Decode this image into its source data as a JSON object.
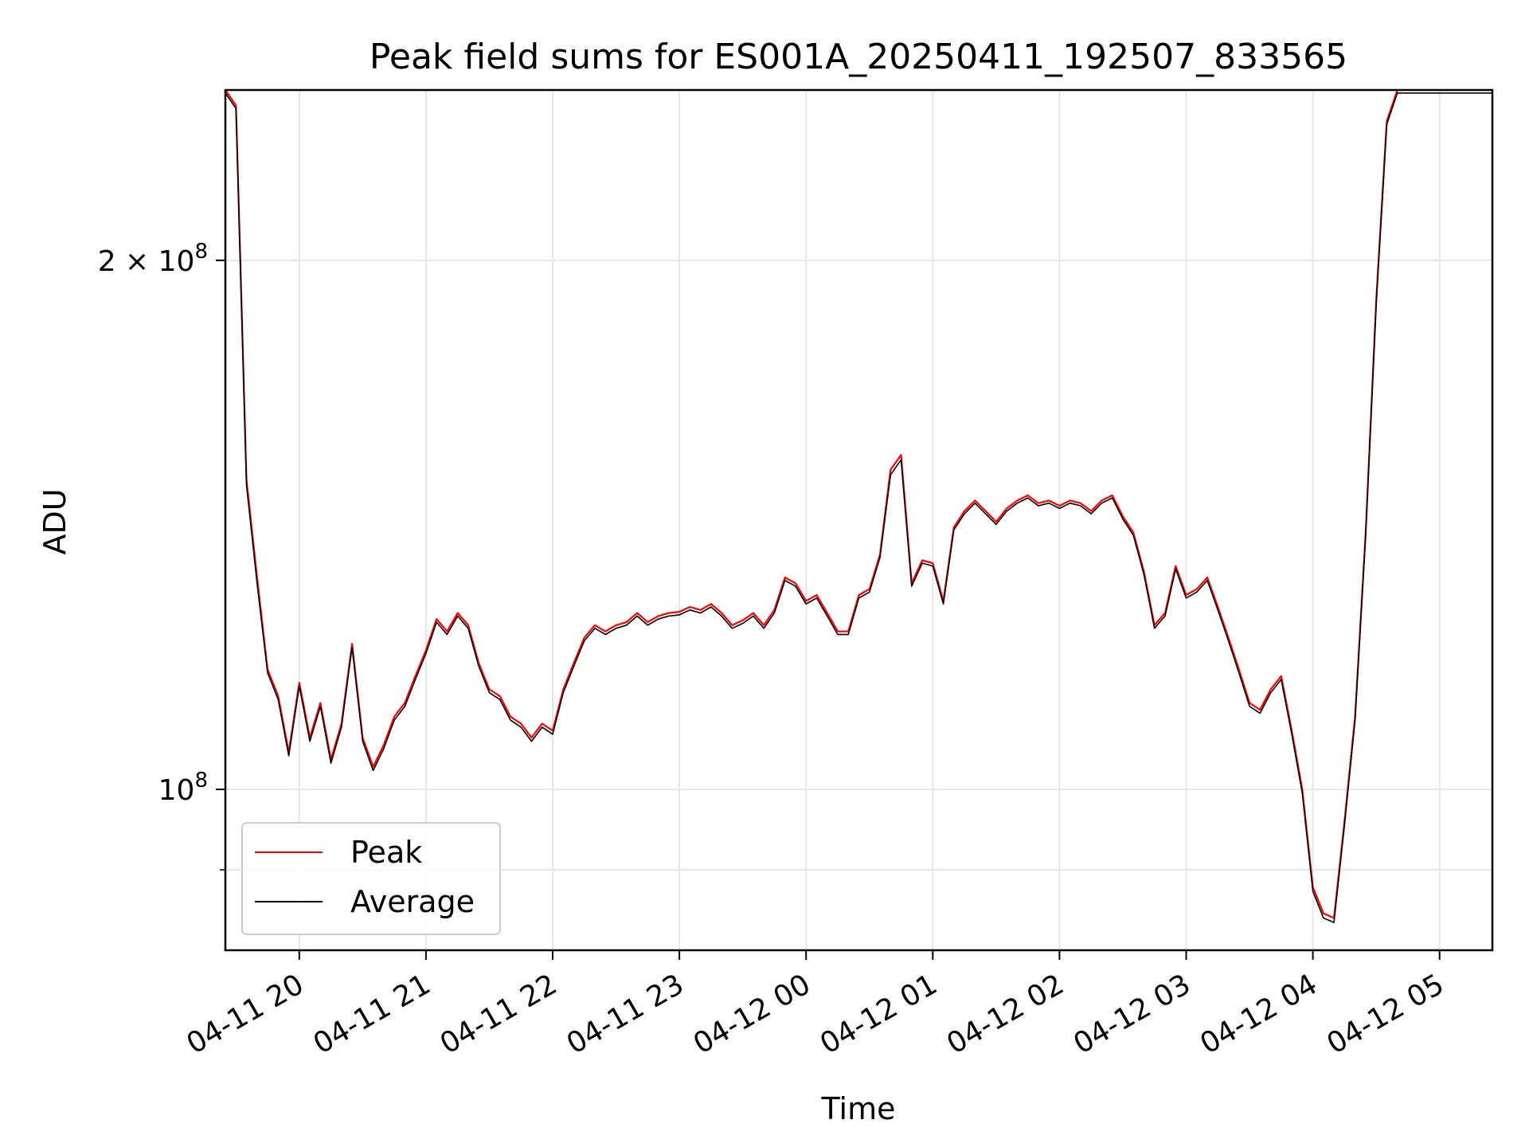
{
  "chart_data": {
    "type": "line",
    "title": "Peak field sums for ES001A_20250411_192507_833565",
    "xlabel": "Time",
    "ylabel": "ADU",
    "yscale": "log",
    "xlim": [
      "04-11 19:25",
      "04-12 05:25"
    ],
    "ylim": [
      81000000,
      250000000
    ],
    "grid": true,
    "legend_position": "lower-left",
    "x_ticks": [
      "04-11 20",
      "04-11 21",
      "04-11 22",
      "04-11 23",
      "04-12 00",
      "04-12 01",
      "04-12 02",
      "04-12 03",
      "04-12 04",
      "04-12 05"
    ],
    "y_ticks": [
      {
        "value": 100000000,
        "mantissa": "",
        "exponent": "8"
      },
      {
        "value": 200000000,
        "mantissa": "2",
        "exponent": "8"
      }
    ],
    "x": [
      "04-11 19:25",
      "04-11 19:30",
      "04-11 19:35",
      "04-11 19:40",
      "04-11 19:45",
      "04-11 19:50",
      "04-11 19:55",
      "04-11 20:00",
      "04-11 20:05",
      "04-11 20:10",
      "04-11 20:15",
      "04-11 20:20",
      "04-11 20:25",
      "04-11 20:30",
      "04-11 20:35",
      "04-11 20:40",
      "04-11 20:45",
      "04-11 20:50",
      "04-11 20:55",
      "04-11 21:00",
      "04-11 21:05",
      "04-11 21:10",
      "04-11 21:15",
      "04-11 21:20",
      "04-11 21:25",
      "04-11 21:30",
      "04-11 21:35",
      "04-11 21:40",
      "04-11 21:45",
      "04-11 21:50",
      "04-11 21:55",
      "04-11 22:00",
      "04-11 22:05",
      "04-11 22:10",
      "04-11 22:15",
      "04-11 22:20",
      "04-11 22:25",
      "04-11 22:30",
      "04-11 22:35",
      "04-11 22:40",
      "04-11 22:45",
      "04-11 22:50",
      "04-11 22:55",
      "04-11 23:00",
      "04-11 23:05",
      "04-11 23:10",
      "04-11 23:15",
      "04-11 23:20",
      "04-11 23:25",
      "04-11 23:30",
      "04-11 23:35",
      "04-11 23:40",
      "04-11 23:45",
      "04-11 23:50",
      "04-11 23:55",
      "04-12 00:00",
      "04-12 00:05",
      "04-12 00:10",
      "04-12 00:15",
      "04-12 00:20",
      "04-12 00:25",
      "04-12 00:30",
      "04-12 00:35",
      "04-12 00:40",
      "04-12 00:45",
      "04-12 00:50",
      "04-12 00:55",
      "04-12 01:00",
      "04-12 01:05",
      "04-12 01:10",
      "04-12 01:15",
      "04-12 01:20",
      "04-12 01:25",
      "04-12 01:30",
      "04-12 01:35",
      "04-12 01:40",
      "04-12 01:45",
      "04-12 01:50",
      "04-12 01:55",
      "04-12 02:00",
      "04-12 02:05",
      "04-12 02:10",
      "04-12 02:15",
      "04-12 02:20",
      "04-12 02:25",
      "04-12 02:30",
      "04-12 02:35",
      "04-12 02:40",
      "04-12 02:45",
      "04-12 02:50",
      "04-12 02:55",
      "04-12 03:00",
      "04-12 03:05",
      "04-12 03:10",
      "04-12 03:15",
      "04-12 03:20",
      "04-12 03:25",
      "04-12 03:30",
      "04-12 03:35",
      "04-12 03:40",
      "04-12 03:45",
      "04-12 03:50",
      "04-12 03:55",
      "04-12 04:00",
      "04-12 04:05",
      "04-12 04:10",
      "04-12 04:15",
      "04-12 04:20",
      "04-12 04:25",
      "04-12 04:30",
      "04-12 04:35",
      "04-12 04:40",
      "04-12 04:45",
      "04-12 04:50",
      "04-12 04:55",
      "04-12 05:00",
      "04-12 05:05",
      "04-12 05:10",
      "04-12 05:15",
      "04-12 05:20",
      "04-12 05:25"
    ],
    "series": [
      {
        "name": "Peak",
        "color": "#ff0000",
        "values": [
          250000000,
          245000000,
          150000000,
          132000000,
          117000000,
          113000000,
          105000000,
          115000000,
          107000000,
          112000000,
          104000000,
          109000000,
          121000000,
          107000000,
          103000000,
          106000000,
          110000000,
          112000000,
          116000000,
          120000000,
          125000000,
          123000000,
          126000000,
          124000000,
          118000000,
          114000000,
          113000000,
          110000000,
          109000000,
          107000000,
          109000000,
          108000000,
          114000000,
          118000000,
          122000000,
          124000000,
          123000000,
          124000000,
          124500000,
          126000000,
          124500000,
          125500000,
          126000000,
          126200000,
          127000000,
          126500000,
          127500000,
          126000000,
          124000000,
          124800000,
          126000000,
          124000000,
          126500000,
          132000000,
          131000000,
          128000000,
          129000000,
          126000000,
          123000000,
          123000000,
          129000000,
          130000000,
          136000000,
          152000000,
          155000000,
          131000000,
          135000000,
          134500000,
          128000000,
          141000000,
          144000000,
          146000000,
          144000000,
          142000000,
          144500000,
          146000000,
          147000000,
          145500000,
          146000000,
          145000000,
          146000000,
          145500000,
          144000000,
          146000000,
          147000000,
          143000000,
          140000000,
          133000000,
          124000000,
          126000000,
          134000000,
          129000000,
          130000000,
          132000000,
          127000000,
          122000000,
          117000000,
          112000000,
          111000000,
          114000000,
          116000000,
          108000000,
          100000000,
          88000000,
          85000000,
          84500000,
          96000000,
          110000000,
          140000000,
          190000000,
          240000000,
          250000000,
          250000000,
          250000000,
          250000000,
          250000000,
          250000000,
          250000000,
          250000000,
          250000000,
          250000000
        ]
      },
      {
        "name": "Average",
        "color": "#000000",
        "values": [
          249000000,
          244000000,
          149000000,
          131000000,
          116500000,
          112500000,
          104500000,
          114500000,
          106500000,
          111500000,
          103500000,
          108500000,
          120500000,
          106500000,
          102500000,
          105500000,
          109500000,
          111500000,
          115500000,
          119500000,
          124500000,
          122500000,
          125500000,
          123500000,
          117500000,
          113500000,
          112500000,
          109500000,
          108500000,
          106500000,
          108500000,
          107500000,
          113500000,
          117500000,
          121500000,
          123500000,
          122500000,
          123500000,
          124000000,
          125500000,
          124000000,
          125000000,
          125500000,
          125700000,
          126500000,
          126000000,
          127000000,
          125500000,
          123500000,
          124300000,
          125500000,
          123500000,
          126000000,
          131500000,
          130500000,
          127500000,
          128500000,
          125500000,
          122500000,
          122500000,
          128500000,
          129500000,
          135500000,
          151000000,
          154000000,
          130500000,
          134500000,
          134000000,
          127500000,
          140500000,
          143500000,
          145500000,
          143500000,
          141500000,
          144000000,
          145500000,
          146500000,
          145000000,
          145500000,
          144500000,
          145500000,
          145000000,
          143500000,
          145500000,
          146500000,
          142500000,
          139500000,
          132500000,
          123500000,
          125500000,
          133500000,
          128500000,
          129500000,
          131500000,
          126500000,
          121500000,
          116500000,
          111500000,
          110500000,
          113500000,
          115500000,
          107500000,
          99500000,
          87500000,
          84500000,
          84000000,
          95500000,
          109500000,
          139500000,
          189000000,
          239000000,
          249000000,
          249000000,
          249000000,
          249000000,
          249000000,
          249000000,
          249000000,
          249000000,
          249000000,
          249000000
        ]
      }
    ]
  }
}
